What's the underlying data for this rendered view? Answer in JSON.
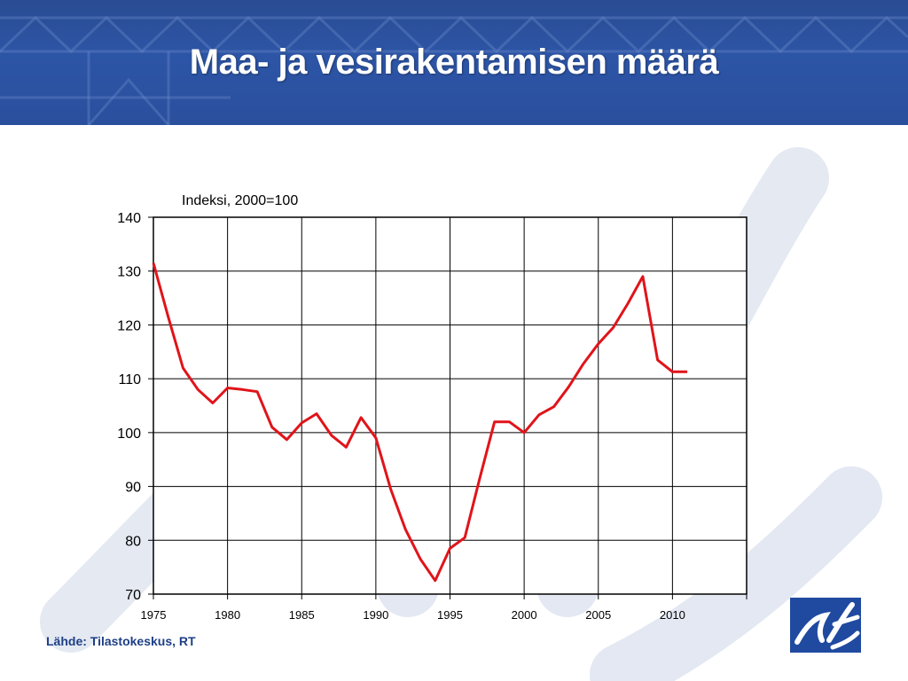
{
  "header": {
    "title": "Maa- ja vesirakentamisen määrä"
  },
  "footer": {
    "source": "Lähde: Tilastokeskus, RT"
  },
  "colors": {
    "header_bg": "#2d55a6",
    "line": "#e0141a",
    "logo_bg": "#1f4aa0",
    "source_text": "#1d3f86"
  },
  "icons": {
    "logo": "rt-logo-icon"
  },
  "chart_data": {
    "type": "line",
    "ylabel": "Indeksi, 2000=100",
    "xlabel": "",
    "ylim": [
      70,
      140
    ],
    "yticks": [
      70,
      80,
      90,
      100,
      110,
      120,
      130,
      140
    ],
    "xlim": [
      1975,
      2015
    ],
    "xticks": [
      1975,
      1980,
      1985,
      1990,
      1995,
      2000,
      2005,
      2010
    ],
    "grid": true,
    "series": [
      {
        "points": [
          [
            1975.0,
            131.5
          ],
          [
            1976.0,
            121.5
          ],
          [
            1977.0,
            112.0
          ],
          [
            1978.0,
            108.0
          ],
          [
            1979.0,
            105.5
          ],
          [
            1980.0,
            108.3
          ],
          [
            1981.0,
            108.0
          ],
          [
            1982.0,
            107.6
          ],
          [
            1983.0,
            101.0
          ],
          [
            1984.0,
            98.7
          ],
          [
            1985.0,
            101.8
          ],
          [
            1986.0,
            103.5
          ],
          [
            1987.0,
            99.5
          ],
          [
            1988.0,
            97.3
          ],
          [
            1989.0,
            102.8
          ],
          [
            1990.0,
            99.0
          ],
          [
            1991.0,
            89.5
          ],
          [
            1992.0,
            82.0
          ],
          [
            1993.0,
            76.5
          ],
          [
            1994.0,
            72.5
          ],
          [
            1995.0,
            78.5
          ],
          [
            1996.0,
            80.5
          ],
          [
            1997.0,
            91.5
          ],
          [
            1998.0,
            102.0
          ],
          [
            1999.0,
            102.0
          ],
          [
            2000.0,
            100.0
          ],
          [
            2001.0,
            103.3
          ],
          [
            2002.0,
            104.8
          ],
          [
            2003.0,
            108.5
          ],
          [
            2004.0,
            112.8
          ],
          [
            2005.0,
            116.5
          ],
          [
            2006.0,
            119.5
          ],
          [
            2007.0,
            124.0
          ],
          [
            2008.0,
            129.0
          ],
          [
            2009.0,
            113.5
          ],
          [
            2010.0,
            111.3
          ],
          [
            2011.0,
            111.3
          ]
        ]
      }
    ]
  }
}
